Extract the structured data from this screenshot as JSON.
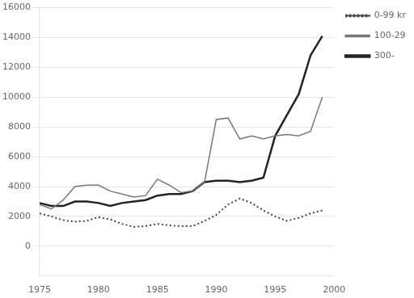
{
  "chart_data": {
    "type": "line",
    "x": [
      1975,
      1976,
      1977,
      1978,
      1979,
      1980,
      1981,
      1982,
      1983,
      1984,
      1985,
      1986,
      1987,
      1988,
      1989,
      1990,
      1991,
      1992,
      1993,
      1994,
      1995,
      1996,
      1997,
      1998,
      1999
    ],
    "series": [
      {
        "name": "0-99 kr",
        "color": "#444444",
        "line_style": "dotted",
        "values": [
          2200,
          2000,
          1750,
          1650,
          1700,
          1950,
          1800,
          1500,
          1300,
          1350,
          1500,
          1400,
          1350,
          1350,
          1700,
          2100,
          2800,
          3200,
          2900,
          2400,
          2000,
          1700,
          1900,
          2200,
          2400
        ]
      },
      {
        "name": "100-29",
        "color": "#777777",
        "line_style": "solid",
        "values": [
          2800,
          2500,
          3100,
          4000,
          4100,
          4100,
          3700,
          3500,
          3300,
          3400,
          4500,
          4100,
          3600,
          3700,
          4300,
          8500,
          8600,
          7200,
          7400,
          7200,
          7400,
          7500,
          7400,
          7700,
          10000
        ]
      },
      {
        "name": "300-",
        "color": "#222222",
        "line_style": "solid",
        "values": [
          2900,
          2700,
          2700,
          3000,
          3000,
          2900,
          2700,
          2900,
          3000,
          3100,
          3400,
          3500,
          3500,
          3700,
          4300,
          4400,
          4400,
          4300,
          4400,
          4600,
          7400,
          8800,
          10200,
          12800,
          14100
        ]
      }
    ],
    "xlim": [
      1975,
      2000
    ],
    "xticks": [
      1975,
      1980,
      1985,
      1990,
      1995,
      2000
    ],
    "ylim": [
      -2000,
      16000
    ],
    "yticks": [
      0,
      2000,
      4000,
      6000,
      8000,
      10000,
      12000,
      14000,
      16000
    ],
    "grid": "y",
    "legend": "right"
  }
}
